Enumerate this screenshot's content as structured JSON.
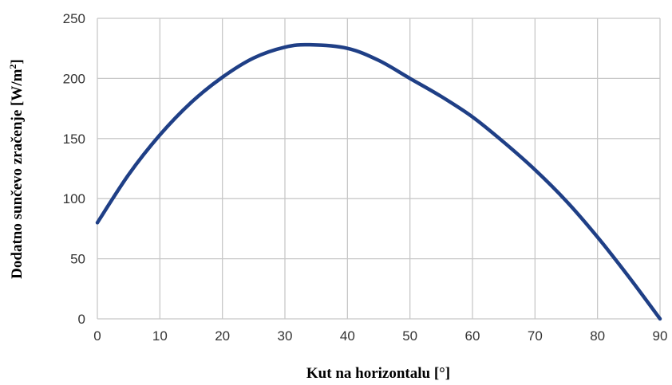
{
  "chart_data": {
    "type": "line",
    "title": "",
    "xlabel": "Kut na horizontalu [°]",
    "ylabel": {
      "text": "Dodatno sunčevo zračenje [W/m",
      "superscript": "2",
      "suffix": "]"
    },
    "xlim": [
      0,
      90
    ],
    "ylim": [
      0,
      250
    ],
    "x_ticks": [
      "0",
      "10",
      "20",
      "30",
      "40",
      "50",
      "60",
      "70",
      "80",
      "90"
    ],
    "y_ticks": [
      "0",
      "50",
      "100",
      "150",
      "200",
      "250"
    ],
    "grid": true,
    "legend": "none",
    "series": [
      {
        "color": "#1f3f86",
        "x": [
          0,
          5,
          10,
          15,
          20,
          25,
          30,
          34,
          40,
          45,
          50,
          55,
          60,
          65,
          70,
          75,
          80,
          85,
          90
        ],
        "y": [
          80,
          120,
          153,
          180,
          201,
          217,
          226,
          228,
          225,
          215,
          200,
          185,
          168,
          147,
          124,
          98,
          68,
          35,
          0
        ]
      }
    ]
  }
}
